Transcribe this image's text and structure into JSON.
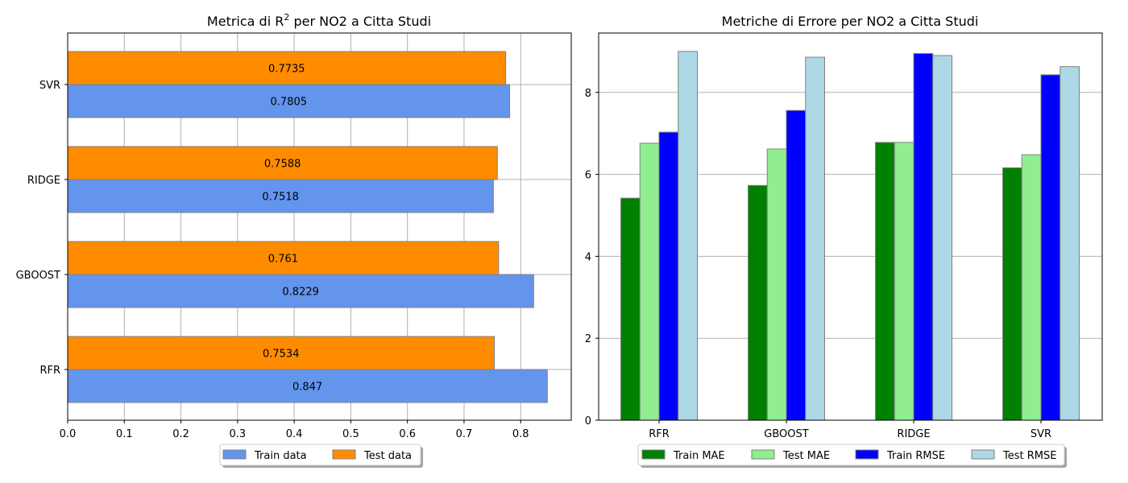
{
  "chart_data": [
    {
      "type": "bar",
      "orientation": "horizontal",
      "title_prefix": "Metrica di R",
      "title_superscript": "2",
      "title_suffix": " per NO2 a Citta Studi",
      "categories": [
        "RFR",
        "GBOOST",
        "RIDGE",
        "SVR"
      ],
      "series": [
        {
          "name": "Train data",
          "color": "#6495ed",
          "values": [
            0.847,
            0.8229,
            0.7518,
            0.7805
          ],
          "labels": [
            "0.847",
            "0.8229",
            "0.7518",
            "0.7805"
          ]
        },
        {
          "name": "Test data",
          "color": "#ff8c00",
          "values": [
            0.7534,
            0.761,
            0.7588,
            0.7735
          ],
          "labels": [
            "0.7534",
            "0.761",
            "0.7588",
            "0.7735"
          ]
        }
      ],
      "xlim": [
        0,
        0.8893
      ],
      "xticks": [
        0.0,
        0.1,
        0.2,
        0.3,
        0.4,
        0.5,
        0.6,
        0.7,
        0.8
      ],
      "xtick_labels": [
        "0.0",
        "0.1",
        "0.2",
        "0.3",
        "0.4",
        "0.5",
        "0.6",
        "0.7",
        "0.8"
      ],
      "grid": "both",
      "legend_placement": "bottom-center"
    },
    {
      "type": "bar",
      "title": "Metriche di Errore per NO2 a Citta Studi",
      "categories": [
        "RFR",
        "GBOOST",
        "RIDGE",
        "SVR"
      ],
      "series": [
        {
          "name": "Train MAE",
          "color": "#008000",
          "values": [
            5.42,
            5.73,
            6.78,
            6.16
          ]
        },
        {
          "name": "Test MAE",
          "color": "#90ee90",
          "values": [
            6.76,
            6.62,
            6.78,
            6.48
          ]
        },
        {
          "name": "Train RMSE",
          "color": "#0000ff",
          "values": [
            7.03,
            7.56,
            8.95,
            8.43
          ]
        },
        {
          "name": "Test RMSE",
          "color": "#add8e6",
          "values": [
            9.0,
            8.86,
            8.9,
            8.63
          ]
        }
      ],
      "ylim": [
        0,
        9.45
      ],
      "yticks": [
        0,
        2,
        4,
        6,
        8
      ],
      "ytick_labels": [
        "0",
        "2",
        "4",
        "6",
        "8"
      ],
      "grid": "y",
      "legend_placement": "bottom-center"
    }
  ]
}
